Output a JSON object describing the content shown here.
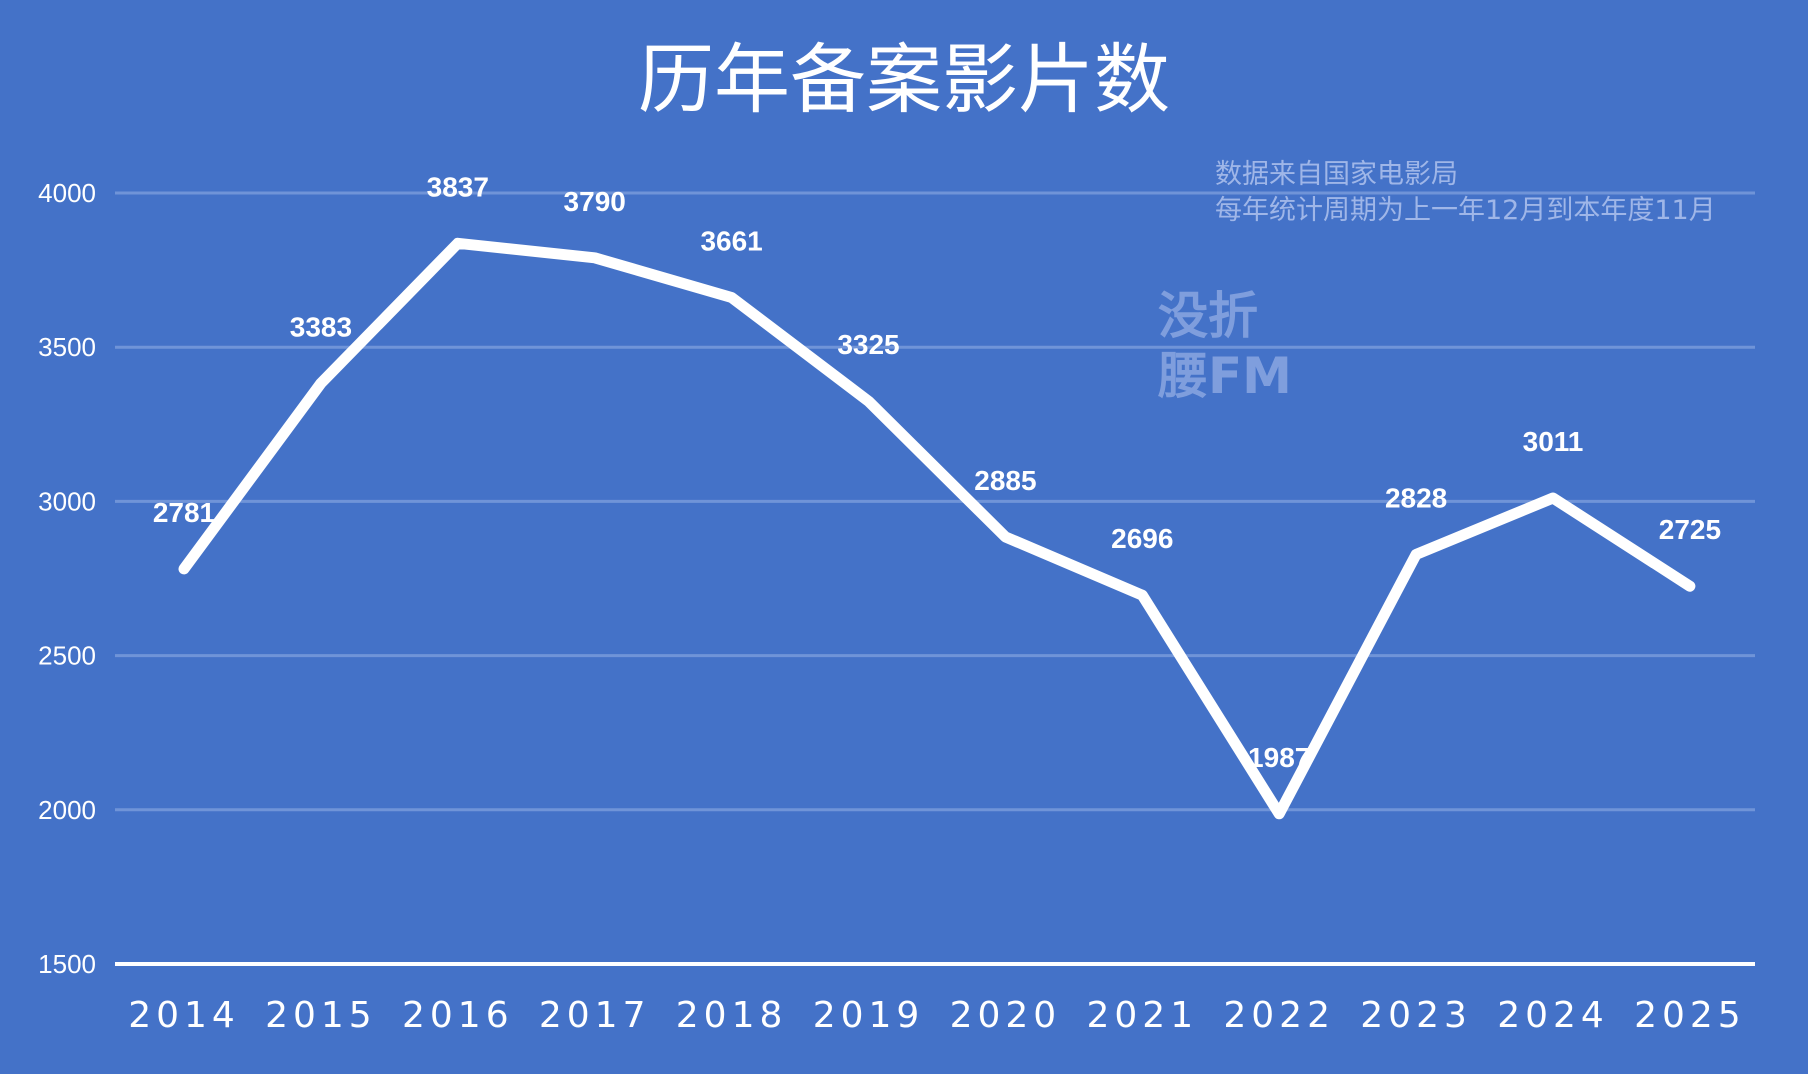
{
  "chart_data": {
    "type": "line",
    "title": "历年备案影片数",
    "categories": [
      "2014",
      "2015",
      "2016",
      "2017",
      "2018",
      "2019",
      "2020",
      "2021",
      "2022",
      "2023",
      "2024",
      "2025"
    ],
    "values": [
      2781,
      3383,
      3837,
      3790,
      3661,
      3325,
      2885,
      2696,
      1987,
      2828,
      3011,
      2725
    ],
    "data_labels": [
      "2781",
      "3383",
      "3837",
      "3790",
      "3661",
      "3325",
      "2885",
      "2696",
      "1987",
      "2828",
      "3011",
      "2725"
    ],
    "yticks": [
      "1500",
      "2000",
      "2500",
      "3000",
      "3500",
      "4000"
    ],
    "ytick_values": [
      1500,
      2000,
      2500,
      3000,
      3500,
      4000
    ],
    "ylim": [
      1500,
      4000
    ],
    "xlabel": "",
    "ylabel": "",
    "grid": true,
    "annotations": [
      "数据来自国家电影局",
      "每年统计周期为上一年12月到本年度11月"
    ],
    "watermark": [
      "没折",
      "腰FM"
    ],
    "colors": {
      "background": "#4472c8",
      "line": "#ffffff",
      "grid": "#7094d8",
      "note": "#9fb6e8"
    }
  }
}
